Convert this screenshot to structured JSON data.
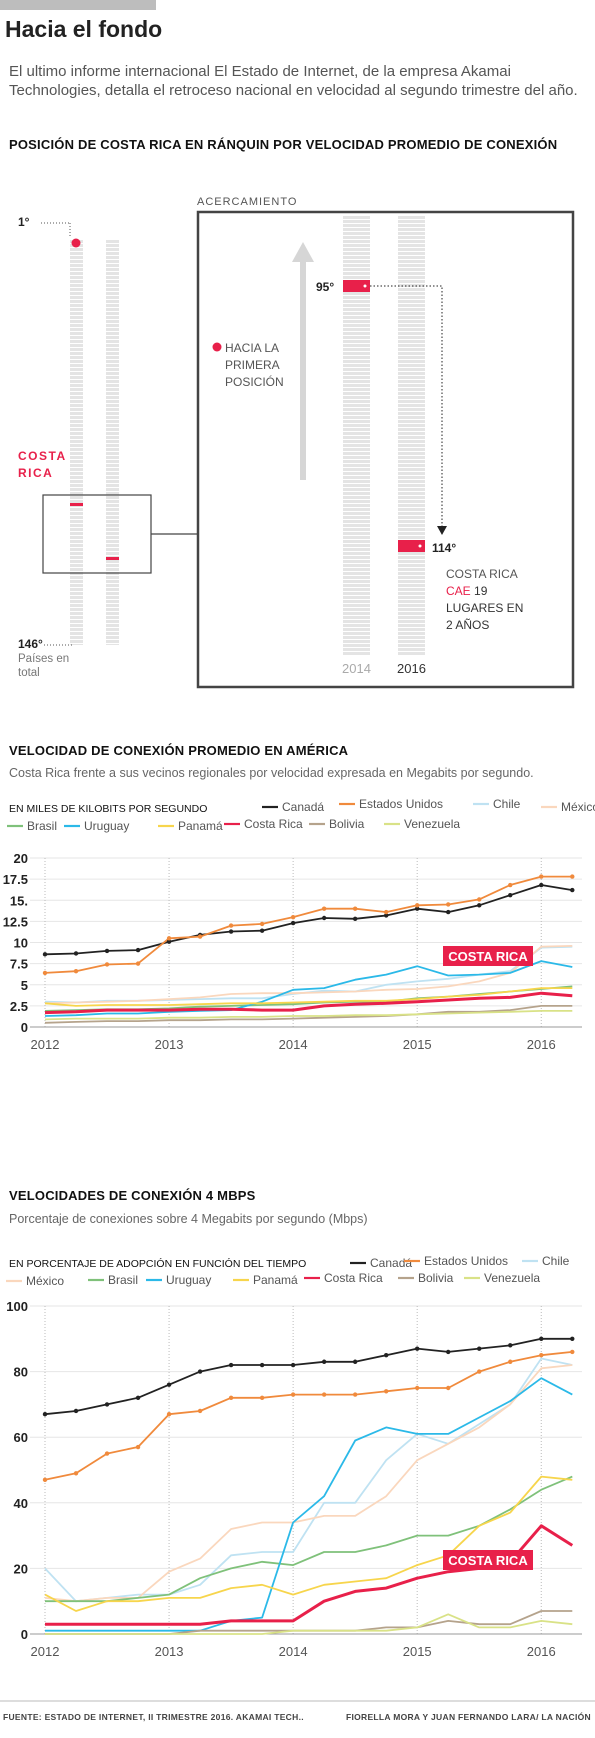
{
  "header": {
    "title": "Hacia el fondo",
    "intro": "El ultimo informe internacional El Estado de Internet, de la empresa Akamai Technologies, detalla el retroceso nacional en velocidad al segundo trimestre del año."
  },
  "ranking": {
    "title": "POSICIÓN DE COSTA RICA EN RÁNQUIN POR VELOCIDAD PROMEDIO DE CONEXIÓN",
    "top_label": "1°",
    "bottom_label": "146°",
    "bottom_caption_1": "Países en",
    "bottom_caption_2": "total",
    "country_label_1": "COSTA",
    "country_label_2": "RICA",
    "zoom_label": "ACERCAMIENTO",
    "legend_1": "HACIA LA",
    "legend_2": "PRIMERA",
    "legend_3": "POSICIÓN",
    "rank_2014": "95°",
    "rank_2016": "114°",
    "year_2014": "2014",
    "year_2016": "2016",
    "note_1": "COSTA RICA",
    "note_2a": "CAE",
    "note_2b": " 19",
    "note_3": "LUGARES EN",
    "note_4": "2 AÑOS"
  },
  "speed_section": {
    "title": "VELOCIDAD DE CONEXIÓN PROMEDIO EN AMÉRICA",
    "subtitle": "Costa Rica frente a sus vecinos regionales por velocidad expresada en Megabits por segundo.",
    "unit": "EN MILES DE KILOBITS POR SEGUNDO",
    "highlight": "COSTA RICA"
  },
  "adoption_section": {
    "title": "VELOCIDADES DE CONEXIÓN 4 MBPS",
    "subtitle": "Porcentaje de conexiones sobre 4 Megabits por segundo (Mbps)",
    "unit": "EN PORCENTAJE DE ADOPCIÓN EN FUNCIÓN DEL TIEMPO",
    "highlight": "COSTA RICA"
  },
  "footer": {
    "source": "FUENTE:  ESTADO DE INTERNET, II TRIMESTRE 2016. AKAMAI TECH..",
    "credit": "FIORELLA MORA Y JUAN FERNANDO LARA/ LA NACIÓN"
  },
  "chart_data": [
    {
      "type": "line",
      "title": "VELOCIDAD DE CONEXIÓN PROMEDIO EN AMÉRICA",
      "ylabel": "EN MILES DE KILOBITS POR SEGUNDO",
      "yticks": [
        "0",
        "2.5",
        "5",
        "7.5",
        "10",
        "12.5",
        "15.",
        "17.5",
        "20"
      ],
      "xticks": [
        "2012",
        "2013",
        "2014",
        "2015",
        "2016"
      ],
      "ylim": [
        0,
        20
      ],
      "x": [
        2012.0,
        2012.25,
        2012.5,
        2012.75,
        2013.0,
        2013.25,
        2013.5,
        2013.75,
        2014.0,
        2014.25,
        2014.5,
        2014.75,
        2015.0,
        2015.25,
        2015.5,
        2015.75,
        2016.0,
        2016.25
      ],
      "series": [
        {
          "name": "Canadá",
          "color": "#222222",
          "values": [
            8.6,
            8.7,
            9.0,
            9.1,
            10.1,
            10.9,
            11.3,
            11.4,
            12.3,
            12.9,
            12.8,
            13.2,
            14.0,
            13.6,
            14.4,
            15.6,
            16.8,
            16.2
          ]
        },
        {
          "name": "Estados Unidos",
          "color": "#f08a3c",
          "values": [
            6.4,
            6.6,
            7.4,
            7.5,
            10.5,
            10.7,
            12.0,
            12.2,
            13.0,
            14.0,
            14.0,
            13.6,
            14.4,
            14.5,
            15.1,
            16.8,
            17.8,
            17.8
          ]
        },
        {
          "name": "Chile",
          "color": "#bfe2f2",
          "values": [
            3.0,
            2.9,
            3.1,
            3.1,
            3.2,
            3.3,
            3.4,
            3.4,
            3.9,
            4.3,
            4.2,
            5.0,
            5.4,
            5.7,
            6.2,
            6.6,
            9.4,
            9.5
          ]
        },
        {
          "name": "México",
          "color": "#fad7bd",
          "values": [
            2.8,
            2.9,
            3.0,
            3.1,
            3.3,
            3.5,
            3.9,
            4.0,
            4.0,
            4.1,
            4.2,
            4.4,
            4.5,
            4.8,
            5.4,
            6.4,
            9.5,
            9.6
          ]
        },
        {
          "name": "Brasil",
          "color": "#7fc17a",
          "values": [
            1.9,
            2.0,
            2.1,
            2.1,
            2.2,
            2.4,
            2.5,
            2.6,
            2.7,
            2.9,
            3.0,
            3.0,
            3.4,
            3.6,
            3.9,
            4.2,
            4.5,
            4.8
          ]
        },
        {
          "name": "Uruguay",
          "color": "#2bb9e8",
          "values": [
            1.3,
            1.4,
            1.6,
            1.6,
            1.8,
            1.9,
            2.0,
            3.0,
            4.4,
            4.6,
            5.6,
            6.2,
            7.2,
            6.1,
            6.2,
            6.4,
            7.8,
            7.1
          ]
        },
        {
          "name": "Panamá",
          "color": "#f7d54c",
          "values": [
            2.8,
            2.5,
            2.6,
            2.6,
            2.6,
            2.7,
            2.8,
            2.8,
            2.9,
            3.0,
            3.1,
            3.1,
            3.3,
            3.6,
            3.8,
            4.2,
            4.6,
            4.6
          ]
        },
        {
          "name": "Costa Rica",
          "color": "#e8204a",
          "values": [
            1.7,
            1.8,
            2.0,
            2.0,
            2.0,
            2.1,
            2.1,
            2.0,
            2.0,
            2.5,
            2.7,
            2.8,
            3.0,
            3.2,
            3.4,
            3.5,
            4.0,
            3.7
          ]
        },
        {
          "name": "Bolivia",
          "color": "#b5a38c",
          "values": [
            0.5,
            0.6,
            0.7,
            0.7,
            0.8,
            0.8,
            0.9,
            0.9,
            1.0,
            1.1,
            1.2,
            1.3,
            1.5,
            1.8,
            1.8,
            2.0,
            2.5,
            2.5
          ]
        },
        {
          "name": "Venezuela",
          "color": "#d9e287",
          "values": [
            0.9,
            1.0,
            1.0,
            1.0,
            1.1,
            1.1,
            1.2,
            1.2,
            1.3,
            1.3,
            1.4,
            1.4,
            1.5,
            1.6,
            1.7,
            1.8,
            1.9,
            1.9
          ]
        }
      ]
    },
    {
      "type": "line",
      "title": "VELOCIDADES DE CONEXIÓN 4 MBPS",
      "ylabel": "EN PORCENTAJE DE ADOPCIÓN EN FUNCIÓN DEL TIEMPO",
      "yticks": [
        "0",
        "20",
        "40",
        "60",
        "80",
        "100"
      ],
      "xticks": [
        "2012",
        "2013",
        "2014",
        "2015",
        "2016"
      ],
      "ylim": [
        0,
        100
      ],
      "x": [
        2012.0,
        2012.25,
        2012.5,
        2012.75,
        2013.0,
        2013.25,
        2013.5,
        2013.75,
        2014.0,
        2014.25,
        2014.5,
        2014.75,
        2015.0,
        2015.25,
        2015.5,
        2015.75,
        2016.0,
        2016.25
      ],
      "series": [
        {
          "name": "Canadá",
          "color": "#222222",
          "values": [
            67,
            68,
            70,
            72,
            76,
            80,
            82,
            82,
            82,
            83,
            83,
            85,
            87,
            86,
            87,
            88,
            90,
            90
          ]
        },
        {
          "name": "Estados Unidos",
          "color": "#f08a3c",
          "values": [
            47,
            49,
            55,
            57,
            67,
            68,
            72,
            72,
            73,
            73,
            73,
            74,
            75,
            75,
            80,
            83,
            85,
            86
          ]
        },
        {
          "name": "Chile",
          "color": "#bfe2f2",
          "values": [
            20,
            10,
            11,
            12,
            12,
            15,
            24,
            25,
            25,
            40,
            40,
            53,
            61,
            58,
            64,
            70,
            84,
            82
          ]
        },
        {
          "name": "México",
          "color": "#fad7bd",
          "values": [
            11,
            10,
            11,
            11,
            19,
            23,
            32,
            34,
            34,
            36,
            36,
            42,
            53,
            58,
            63,
            70,
            81,
            82
          ]
        },
        {
          "name": "Brasil",
          "color": "#7fc17a",
          "values": [
            10,
            10,
            10,
            11,
            12,
            17,
            20,
            22,
            21,
            25,
            25,
            27,
            30,
            30,
            33,
            38,
            44,
            48
          ]
        },
        {
          "name": "Uruguay",
          "color": "#2bb9e8",
          "values": [
            1,
            1,
            1,
            1,
            1,
            1,
            4,
            5,
            34,
            42,
            59,
            63,
            61,
            61,
            66,
            71,
            78,
            73
          ]
        },
        {
          "name": "Panamá",
          "color": "#f7d54c",
          "values": [
            12,
            7,
            10,
            10,
            11,
            11,
            14,
            15,
            12,
            15,
            16,
            17,
            21,
            24,
            33,
            37,
            48,
            47
          ]
        },
        {
          "name": "Costa Rica",
          "color": "#e8204a",
          "values": [
            3,
            3,
            3,
            3,
            3,
            3,
            4,
            4,
            4,
            10,
            13,
            14,
            17,
            19,
            20,
            22,
            33,
            27
          ]
        },
        {
          "name": "Bolivia",
          "color": "#b5a38c",
          "values": [
            0,
            0,
            0,
            0,
            0,
            1,
            1,
            1,
            1,
            1,
            1,
            2,
            2,
            4,
            3,
            3,
            7,
            7
          ]
        },
        {
          "name": "Venezuela",
          "color": "#d9e287",
          "values": [
            0,
            0,
            0,
            0,
            0,
            0,
            0,
            0,
            1,
            1,
            1,
            1,
            2,
            6,
            2,
            2,
            4,
            3
          ]
        }
      ]
    }
  ]
}
